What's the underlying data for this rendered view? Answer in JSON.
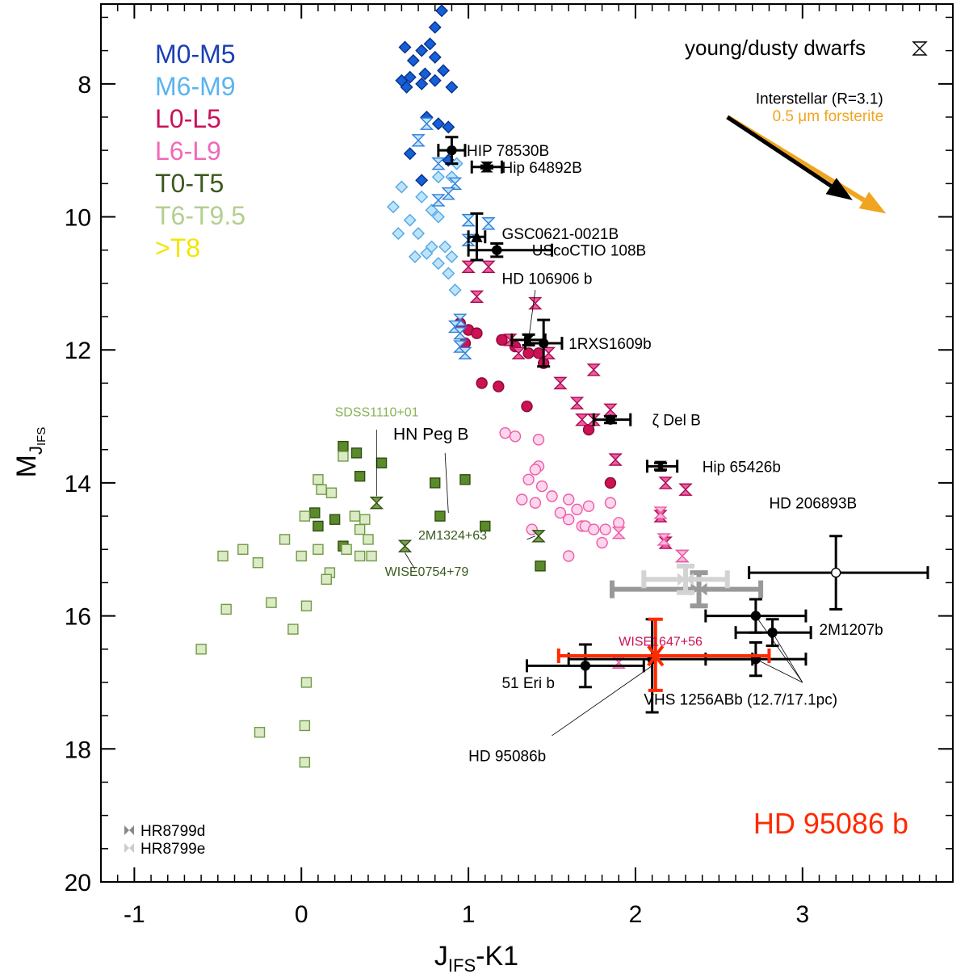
{
  "chart_data": {
    "type": "scatter",
    "title": "",
    "xlabel": {
      "main": "J",
      "sub": "IFS",
      "tail": "-K1"
    },
    "ylabel": {
      "main": "M",
      "sub": "J",
      "subsub": "IFS"
    },
    "xlim": [
      -1.2,
      3.9
    ],
    "ylim": [
      20,
      6.8
    ],
    "y_inverted": true,
    "xticks": [
      -1,
      0,
      1,
      2,
      3
    ],
    "xtick_labels": [
      "-1",
      "0",
      "1",
      "2",
      "3"
    ],
    "yticks": [
      8,
      10,
      12,
      14,
      16,
      18,
      20
    ],
    "ytick_labels": [
      "8",
      "10",
      "12",
      "14",
      "16",
      "18",
      "20"
    ],
    "grid": false,
    "legend_position": "top-left",
    "legend": [
      {
        "label": "M0-M5",
        "color": "#1a3fb5"
      },
      {
        "label": "M6-M9",
        "color": "#5ab4ef"
      },
      {
        "label": "L0-L5",
        "color": "#c8125a"
      },
      {
        "label": "L6-L9",
        "color": "#f06ab8"
      },
      {
        "label": "T0-T5",
        "color": "#3a5a1e"
      },
      {
        "label": "T6-T9.5",
        "color": "#b3cf8e"
      },
      {
        "label": ">T8",
        "color": "#f2e600"
      }
    ],
    "young_legend": "young/dusty dwarfs",
    "highlight_label": "HD 95086 b",
    "highlight_color": "#ff2a00",
    "reddening": {
      "label_interstellar": "Interstellar (R=3.1)",
      "label_forsterite": "0.5 μm forsterite",
      "interstellar_color": "#000000",
      "forsterite_color": "#f0a520",
      "start": [
        2.55,
        8.5
      ],
      "interstellar_end": [
        3.3,
        9.75
      ],
      "forsterite_end": [
        3.5,
        9.95
      ]
    },
    "hr8799_legend": [
      {
        "label": "HR8799d",
        "color": "#888888"
      },
      {
        "label": "HR8799e",
        "color": "#cccccc"
      }
    ],
    "series": [
      {
        "name": "M0-M5",
        "marker": "diamond",
        "fill": "#1560d6",
        "stroke": "#0a2f8c",
        "points": [
          [
            0.84,
            6.9
          ],
          [
            0.8,
            7.15
          ],
          [
            0.77,
            7.4
          ],
          [
            0.62,
            7.45
          ],
          [
            0.72,
            7.5
          ],
          [
            0.8,
            7.6
          ],
          [
            0.67,
            7.65
          ],
          [
            0.74,
            7.85
          ],
          [
            0.6,
            7.95
          ],
          [
            0.85,
            7.8
          ],
          [
            0.65,
            7.9
          ],
          [
            0.8,
            7.95
          ],
          [
            0.63,
            8.05
          ],
          [
            0.72,
            8.0
          ],
          [
            0.9,
            8.05
          ],
          [
            0.75,
            8.5
          ],
          [
            0.82,
            8.6
          ],
          [
            0.88,
            8.65
          ],
          [
            0.65,
            9.05
          ],
          [
            0.88,
            9.15
          ],
          [
            0.72,
            9.45
          ]
        ]
      },
      {
        "name": "M6-M9",
        "marker": "diamond-open",
        "fill": "#bfe3fa",
        "stroke": "#4ea8e6",
        "points": [
          [
            0.55,
            9.85
          ],
          [
            0.65,
            10.05
          ],
          [
            0.58,
            10.25
          ],
          [
            0.72,
            9.7
          ],
          [
            0.78,
            9.9
          ],
          [
            0.82,
            10.0
          ],
          [
            0.7,
            10.25
          ],
          [
            0.78,
            10.45
          ],
          [
            0.75,
            10.55
          ],
          [
            0.68,
            10.6
          ],
          [
            0.86,
            10.45
          ],
          [
            0.9,
            10.6
          ],
          [
            0.82,
            10.7
          ],
          [
            0.88,
            10.85
          ],
          [
            0.92,
            11.1
          ],
          [
            0.82,
            9.4
          ],
          [
            0.9,
            9.4
          ],
          [
            0.93,
            9.2
          ],
          [
            0.6,
            9.55
          ]
        ]
      },
      {
        "name": "L0-L5",
        "marker": "circle",
        "fill": "#cc1155",
        "stroke": "#8a0a38",
        "points": [
          [
            0.95,
            11.6
          ],
          [
            1.0,
            11.7
          ],
          [
            1.05,
            11.75
          ],
          [
            0.98,
            11.9
          ],
          [
            1.2,
            11.85
          ],
          [
            1.28,
            11.95
          ],
          [
            1.36,
            12.05
          ],
          [
            1.42,
            12.05
          ],
          [
            1.45,
            12.2
          ],
          [
            1.08,
            12.5
          ],
          [
            1.18,
            12.55
          ],
          [
            1.35,
            12.85
          ],
          [
            1.72,
            13.2
          ],
          [
            1.85,
            14.0
          ]
        ]
      },
      {
        "name": "L6-L9",
        "marker": "circle-open",
        "fill": "#fbd6ec",
        "stroke": "#ee5aa8",
        "points": [
          [
            1.22,
            13.25
          ],
          [
            1.28,
            13.3
          ],
          [
            1.42,
            13.35
          ],
          [
            1.42,
            13.75
          ],
          [
            1.4,
            13.8
          ],
          [
            1.36,
            13.95
          ],
          [
            1.44,
            14.05
          ],
          [
            1.5,
            14.2
          ],
          [
            1.32,
            14.25
          ],
          [
            1.4,
            14.3
          ],
          [
            1.6,
            14.25
          ],
          [
            1.65,
            14.4
          ],
          [
            1.72,
            14.35
          ],
          [
            1.55,
            14.45
          ],
          [
            1.6,
            14.55
          ],
          [
            1.68,
            14.65
          ],
          [
            1.7,
            14.65
          ],
          [
            1.75,
            14.7
          ],
          [
            1.38,
            14.7
          ],
          [
            1.8,
            14.9
          ],
          [
            1.6,
            15.1
          ],
          [
            1.85,
            14.3
          ],
          [
            1.9,
            14.6
          ],
          [
            1.82,
            14.7
          ]
        ]
      },
      {
        "name": "T0-T5",
        "marker": "square",
        "fill": "#5b8a2a",
        "stroke": "#2f4d12",
        "points": [
          [
            0.25,
            13.45
          ],
          [
            0.33,
            13.55
          ],
          [
            0.48,
            13.7
          ],
          [
            0.08,
            14.45
          ],
          [
            0.1,
            14.65
          ],
          [
            0.2,
            14.55
          ],
          [
            0.35,
            13.9
          ],
          [
            0.8,
            14.0
          ],
          [
            0.98,
            13.95
          ],
          [
            0.83,
            14.5
          ],
          [
            1.1,
            14.65
          ],
          [
            0.25,
            14.95
          ],
          [
            1.43,
            15.25
          ]
        ]
      },
      {
        "name": "T6-T9.5",
        "marker": "square-open",
        "fill": "#dcebc6",
        "stroke": "#6f9a45",
        "points": [
          [
            0.25,
            13.6
          ],
          [
            0.1,
            13.95
          ],
          [
            0.12,
            14.1
          ],
          [
            0.18,
            14.15
          ],
          [
            0.02,
            14.5
          ],
          [
            0.32,
            14.5
          ],
          [
            0.38,
            14.55
          ],
          [
            0.35,
            14.7
          ],
          [
            0.4,
            14.85
          ],
          [
            0.27,
            15.0
          ],
          [
            -0.1,
            14.85
          ],
          [
            -0.47,
            15.1
          ],
          [
            -0.35,
            15.0
          ],
          [
            0.1,
            15.0
          ],
          [
            0.42,
            15.1
          ],
          [
            0.0,
            15.1
          ],
          [
            0.35,
            15.1
          ],
          [
            0.17,
            15.35
          ],
          [
            -0.26,
            15.2
          ],
          [
            0.15,
            15.45
          ],
          [
            -0.45,
            15.9
          ],
          [
            -0.18,
            15.8
          ],
          [
            0.03,
            15.85
          ],
          [
            -0.05,
            16.2
          ],
          [
            -0.6,
            16.5
          ],
          [
            0.03,
            17.0
          ],
          [
            0.02,
            17.65
          ],
          [
            -0.25,
            17.75
          ],
          [
            0.02,
            18.2
          ]
        ]
      },
      {
        "name": "young/dusty dwarfs M6-M9",
        "marker": "hourglass",
        "fill": "#bfe3fa",
        "stroke": "#2f7fd9",
        "points": [
          [
            0.75,
            8.6
          ],
          [
            0.7,
            8.85
          ],
          [
            0.82,
            9.2
          ],
          [
            0.92,
            9.5
          ],
          [
            0.88,
            9.65
          ],
          [
            0.82,
            9.75
          ],
          [
            1.0,
            10.05
          ],
          [
            1.12,
            10.1
          ],
          [
            1.0,
            10.35
          ],
          [
            0.95,
            11.55
          ],
          [
            0.92,
            11.65
          ],
          [
            0.95,
            11.75
          ],
          [
            0.95,
            11.95
          ],
          [
            0.98,
            12.05
          ]
        ]
      },
      {
        "name": "young/dusty dwarfs L",
        "marker": "hourglass",
        "fill": "#ee5aa8",
        "stroke": "#a80d4a",
        "points": [
          [
            1.0,
            10.75
          ],
          [
            1.12,
            10.75
          ],
          [
            1.05,
            11.2
          ],
          [
            1.4,
            11.3
          ],
          [
            1.25,
            11.85
          ],
          [
            1.3,
            12.05
          ],
          [
            1.48,
            12.05
          ],
          [
            1.55,
            12.5
          ],
          [
            1.75,
            12.3
          ],
          [
            1.65,
            12.8
          ],
          [
            1.85,
            12.9
          ],
          [
            1.75,
            13.05
          ],
          [
            1.68,
            13.05
          ],
          [
            1.88,
            13.65
          ],
          [
            2.18,
            14.0
          ],
          [
            2.3,
            14.1
          ],
          [
            2.15,
            14.5
          ],
          [
            2.18,
            14.9
          ],
          [
            2.28,
            15.1
          ]
        ]
      },
      {
        "name": "young/dusty dwarfs L6-L9 pink",
        "marker": "hourglass",
        "fill": "#f7b9db",
        "stroke": "#ee5aa8",
        "points": [
          [
            2.15,
            14.45
          ],
          [
            2.17,
            14.85
          ],
          [
            2.28,
            15.1
          ],
          [
            1.9,
            14.75
          ],
          [
            1.9,
            16.7
          ]
        ]
      },
      {
        "name": "young/dusty dwarfs T",
        "marker": "hourglass",
        "fill": "#7aa04e",
        "stroke": "#2f4d12",
        "points": [
          [
            0.45,
            14.3
          ],
          [
            0.62,
            14.95
          ],
          [
            1.42,
            14.8
          ]
        ]
      },
      {
        "name": "HR8799d",
        "marker": "cross",
        "stroke": "#999999",
        "points": [
          [
            2.38,
            15.6
          ]
        ],
        "xerr": [
          [
            0.52,
            0.37
          ]
        ],
        "yerr": [
          [
            0.25,
            0.25
          ]
        ]
      },
      {
        "name": "HR8799e",
        "marker": "cross",
        "stroke": "#d3d3d3",
        "points": [
          [
            2.3,
            15.45
          ]
        ],
        "xerr": [
          [
            0.25,
            0.25
          ]
        ],
        "yerr": [
          [
            0.2,
            0.2
          ]
        ]
      }
    ],
    "companions": [
      {
        "name": "HIP 78530B",
        "x": 0.9,
        "y": 9.0,
        "xerr": [
          0.08,
          0.08
        ],
        "yerr": [
          0.2,
          0.2
        ],
        "marker": "circle",
        "label_at": [
          0.99,
          9.0
        ]
      },
      {
        "name": "Hip 64892B",
        "x": 1.11,
        "y": 9.25,
        "xerr": [
          0.09,
          0.09
        ],
        "yerr": [
          0.02,
          0.02
        ],
        "marker": "hourglass",
        "label_at": [
          1.2,
          9.25
        ]
      },
      {
        "name": "GSC0621-0021B",
        "x": 1.05,
        "y": 10.3,
        "xerr": [
          0.05,
          0.05
        ],
        "yerr": [
          0.35,
          0.35
        ],
        "marker": "triangle",
        "label_at": [
          1.2,
          10.25
        ]
      },
      {
        "name": "UScoCTIO 108B",
        "x": 1.17,
        "y": 10.5,
        "xerr": [
          0.17,
          0.33
        ],
        "yerr": [
          0.1,
          0.1
        ],
        "marker": "circle",
        "label_at": [
          1.38,
          10.5
        ]
      },
      {
        "name": "HD 106906 b",
        "x": 1.36,
        "y": 11.85,
        "xerr": [
          0.1,
          0.1
        ],
        "yerr": [
          0.08,
          0.08
        ],
        "marker": "hourglass",
        "label_at": [
          1.2,
          10.92
        ]
      },
      {
        "name": "1RXS1609b",
        "x": 1.45,
        "y": 11.9,
        "xerr": [
          0.11,
          0.11
        ],
        "yerr": [
          0.35,
          0.35
        ],
        "marker": "circle",
        "label_at": [
          1.6,
          11.9
        ]
      },
      {
        "name": "ζ Del B",
        "x": 1.85,
        "y": 13.05,
        "xerr": [
          0.1,
          0.12
        ],
        "yerr": [
          0.05,
          0.05
        ],
        "marker": "circle",
        "label_at": [
          2.1,
          13.05
        ]
      },
      {
        "name": "Hip 65426b",
        "x": 2.15,
        "y": 13.75,
        "xerr": [
          0.08,
          0.1
        ],
        "yerr": [
          0.05,
          0.05
        ],
        "marker": "hourglass",
        "label_at": [
          2.4,
          13.75
        ]
      },
      {
        "name": "HD 206893B",
        "x": 3.2,
        "y": 15.35,
        "xerr": [
          0.52,
          0.55
        ],
        "yerr": [
          0.55,
          0.55
        ],
        "marker": "circle-open",
        "label_at": [
          2.8,
          14.3
        ]
      },
      {
        "name": "2M1207b",
        "x": 2.82,
        "y": 16.25,
        "xerr": [
          0.22,
          0.23
        ],
        "yerr": [
          0.2,
          0.2
        ],
        "marker": "circle",
        "label_at": [
          3.1,
          16.2
        ]
      },
      {
        "name": "VHS 1256ABb (12.7/17.1pc)",
        "x": 2.72,
        "y": 16.0,
        "xerr": [
          0.3,
          0.3
        ],
        "yerr": [
          0.25,
          0.25
        ],
        "marker": "circle",
        "label_at": [
          2.05,
          17.25
        ]
      },
      {
        "name": "VHS 1256ABb far",
        "x": 2.72,
        "y": 16.65,
        "xerr": [
          0.3,
          0.3
        ],
        "yerr": [
          0.25,
          0.25
        ],
        "marker": "circle",
        "label_at": null
      },
      {
        "name": "51 Eri b",
        "x": 1.7,
        "y": 16.75,
        "xerr": [
          0.35,
          0.35
        ],
        "yerr": [
          0.32,
          0.32
        ],
        "marker": "circle",
        "label_at": [
          1.2,
          17.0
        ]
      },
      {
        "name": "HD 95086b",
        "x": 2.1,
        "y": 16.65,
        "xerr": [
          0.5,
          0.6
        ],
        "yerr": [
          0.6,
          0.8
        ],
        "marker": "circle",
        "label_at": [
          1.0,
          18.1
        ]
      }
    ],
    "annotations": [
      {
        "text": "SDSS1110+01",
        "color": "#8bb35a",
        "at": [
          0.2,
          13.0
        ]
      },
      {
        "text": "HN Peg B",
        "color": "#000000",
        "at": [
          0.55,
          13.35
        ]
      },
      {
        "text": "2M1324+63",
        "color": "#3a5a1e",
        "at": [
          0.7,
          14.85
        ]
      },
      {
        "text": "WISE0754+79",
        "color": "#3a5a1e",
        "at": [
          0.5,
          15.4
        ]
      },
      {
        "text": "WISE1647+56",
        "color": "#cc1155",
        "at": [
          1.9,
          16.45
        ]
      }
    ],
    "hd95086b_point": {
      "x": 2.12,
      "y": 16.6,
      "xerr": [
        0.58,
        0.68
      ],
      "yerr": [
        0.55,
        0.52
      ],
      "color": "#ff2a00"
    }
  }
}
